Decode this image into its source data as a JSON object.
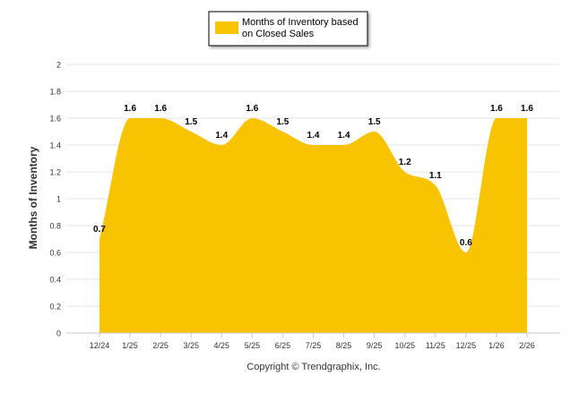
{
  "chart_data": {
    "type": "area",
    "categories": [
      "12/24",
      "1/25",
      "2/25",
      "3/25",
      "4/25",
      "5/25",
      "6/25",
      "7/25",
      "8/25",
      "9/25",
      "10/25",
      "11/25",
      "12/25",
      "1/26",
      "2/26"
    ],
    "series": [
      {
        "name": "Months of Inventory based on Closed Sales",
        "values": [
          0.7,
          1.6,
          1.6,
          1.5,
          1.4,
          1.6,
          1.5,
          1.4,
          1.4,
          1.5,
          1.2,
          1.1,
          0.6,
          1.6,
          1.6
        ],
        "color": "#F8C300"
      }
    ],
    "legend_lines": [
      "Months of Inventory based",
      "on Closed Sales"
    ],
    "legend_position": "top-center",
    "ylabel": "Months of Inventory",
    "xlabel": "",
    "ylim": [
      0,
      2
    ],
    "yticks": [
      "0",
      "0.2",
      "0.4",
      "0.6",
      "0.8",
      "1",
      "1.2",
      "1.4",
      "1.6",
      "1.8",
      "2"
    ],
    "grid": true,
    "data_labels": true,
    "footer": "Copyright © Trendgraphix, Inc."
  }
}
